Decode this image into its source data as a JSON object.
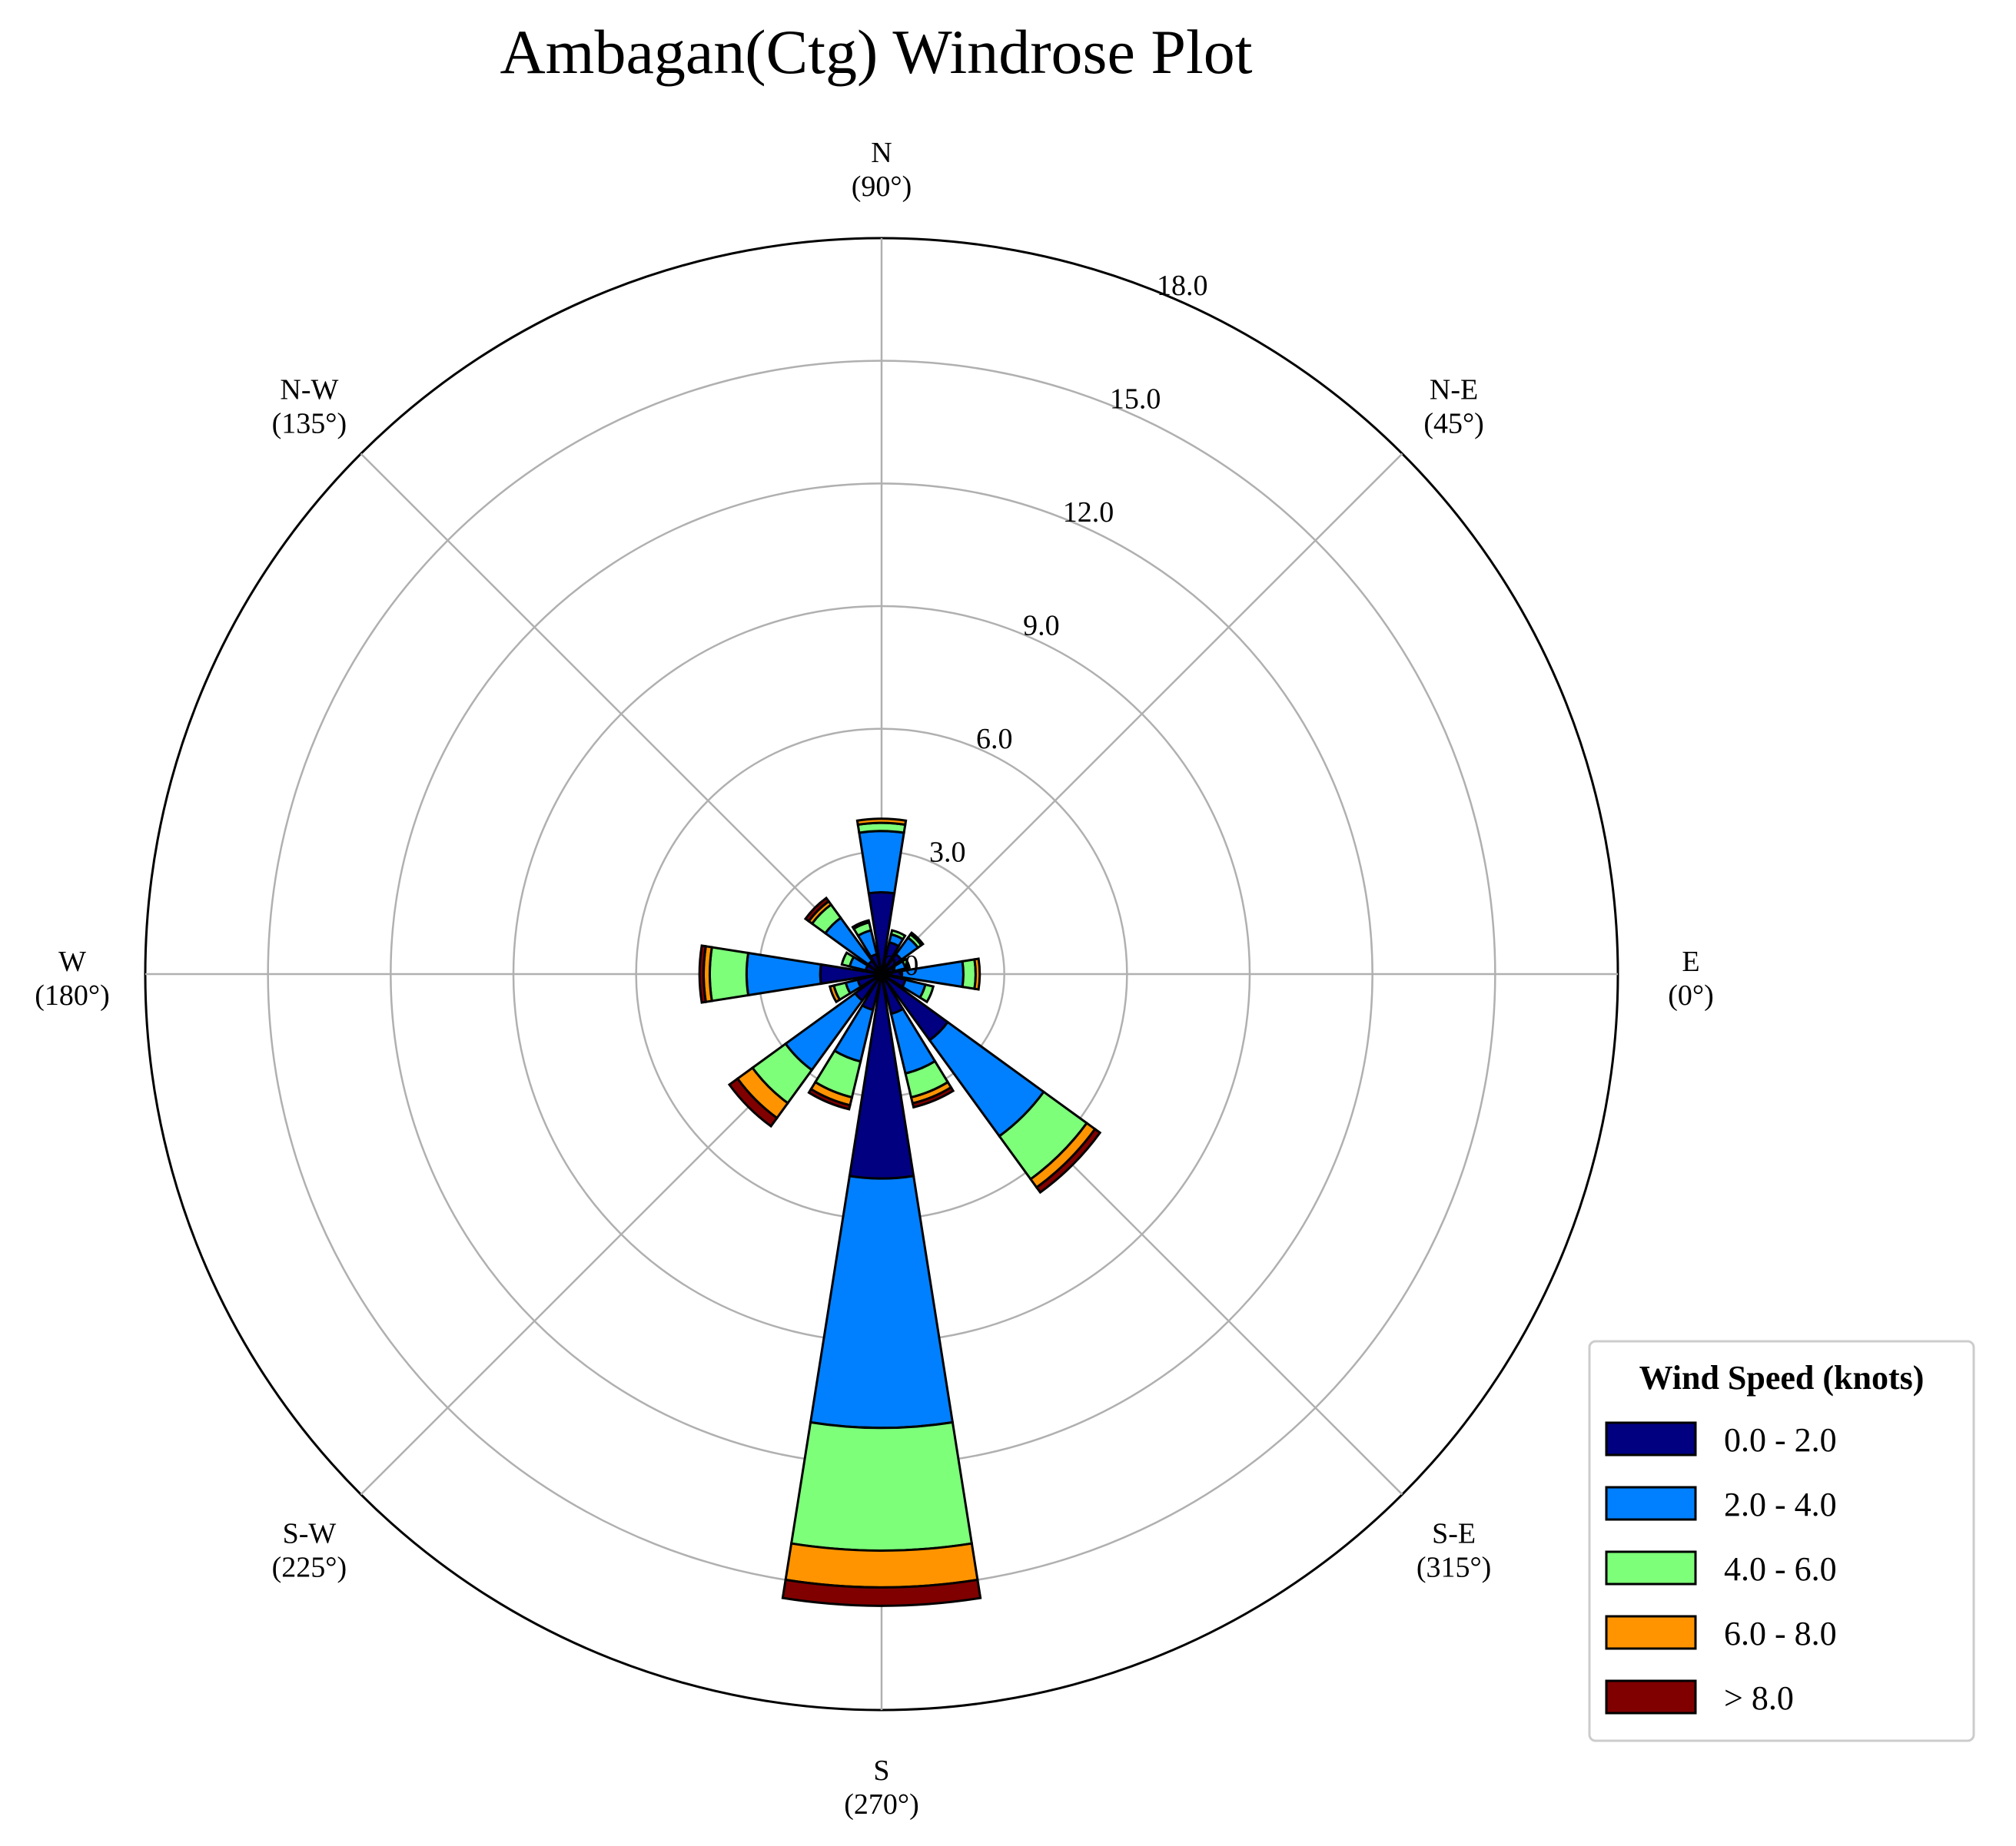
{
  "chart_data": {
    "type": "windrose",
    "title": "Ambagan(Ctg) Windrose Plot",
    "directions": [
      {
        "name": "E",
        "angle_label": "(0°)",
        "deg": 0
      },
      {
        "name": "N-E",
        "angle_label": "(45°)",
        "deg": 45
      },
      {
        "name": "N",
        "angle_label": "(90°)",
        "deg": 90
      },
      {
        "name": "N-W",
        "angle_label": "(135°)",
        "deg": 135
      },
      {
        "name": "W",
        "angle_label": "(180°)",
        "deg": 180
      },
      {
        "name": "S-W",
        "angle_label": "(225°)",
        "deg": 225
      },
      {
        "name": "S",
        "angle_label": "(270°)",
        "deg": 270
      },
      {
        "name": "S-E",
        "angle_label": "(315°)",
        "deg": 315
      }
    ],
    "radial_ticks": [
      "0.0",
      "3.0",
      "6.0",
      "9.0",
      "12.0",
      "15.0",
      "18.0"
    ],
    "radial_values": [
      0,
      3,
      6,
      9,
      12,
      15,
      18
    ],
    "rmax": 18,
    "grid": true,
    "legend": {
      "title": "Wind Speed (knots)",
      "position": "bottom-right",
      "items": [
        {
          "label": "0.0 - 2.0",
          "color": "#000080"
        },
        {
          "label": "2.0 - 4.0",
          "color": "#0080ff"
        },
        {
          "label": "4.0 - 6.0",
          "color": "#7dff7a"
        },
        {
          "label": "6.0 - 8.0",
          "color": "#ff9400"
        },
        {
          "label": "> 8.0",
          "color": "#800000"
        }
      ]
    },
    "bars": [
      {
        "deg": 0,
        "segments": [
          0.5,
          1.5,
          0.3,
          0.1,
          0.0
        ]
      },
      {
        "deg": 22.5,
        "segments": [
          0.3,
          0.3,
          0.1,
          0.0,
          0.0
        ]
      },
      {
        "deg": 45,
        "segments": [
          0.6,
          0.5,
          0.1,
          0.05,
          0.0
        ]
      },
      {
        "deg": 67.5,
        "segments": [
          0.8,
          0.2,
          0.1,
          0.0,
          0.0
        ]
      },
      {
        "deg": 90,
        "segments": [
          2.0,
          1.5,
          0.2,
          0.1,
          0.0
        ]
      },
      {
        "deg": 112.5,
        "segments": [
          0.5,
          0.6,
          0.2,
          0.05,
          0.0
        ]
      },
      {
        "deg": 135,
        "segments": [
          0.4,
          1.3,
          0.4,
          0.1,
          0.1
        ]
      },
      {
        "deg": 157.5,
        "segments": [
          0.4,
          0.4,
          0.2,
          0.0,
          0.0
        ]
      },
      {
        "deg": 180,
        "segments": [
          1.5,
          1.8,
          0.9,
          0.15,
          0.1
        ]
      },
      {
        "deg": 202.5,
        "segments": [
          0.6,
          0.3,
          0.3,
          0.1,
          0.0
        ]
      },
      {
        "deg": 225,
        "segments": [
          0.8,
          2.1,
          1.0,
          0.45,
          0.25
        ]
      },
      {
        "deg": 247.5,
        "segments": [
          0.9,
          1.3,
          0.9,
          0.2,
          0.1
        ]
      },
      {
        "deg": 270,
        "segments": [
          5.0,
          6.1,
          3.0,
          0.9,
          0.45
        ]
      },
      {
        "deg": 292.5,
        "segments": [
          1.0,
          1.5,
          0.6,
          0.15,
          0.1
        ]
      },
      {
        "deg": 315,
        "segments": [
          2.0,
          2.9,
          1.3,
          0.25,
          0.15
        ]
      },
      {
        "deg": 337.5,
        "segments": [
          0.6,
          0.5,
          0.2,
          0.0,
          0.0
        ]
      }
    ]
  }
}
